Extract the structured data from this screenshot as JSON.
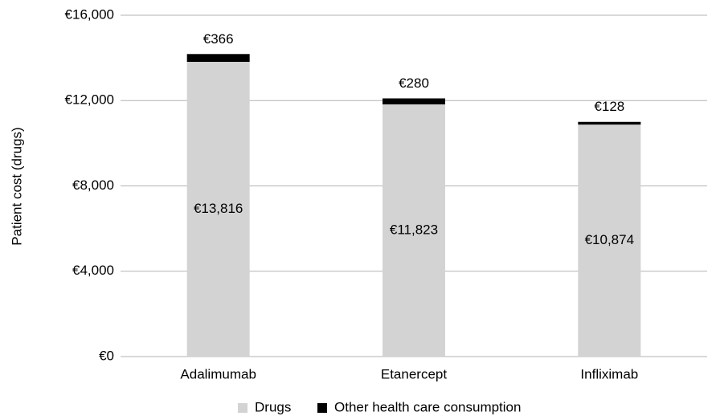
{
  "chart_data": {
    "type": "stacked_bar",
    "y_label": "Patient cost (drugs)",
    "categories": [
      "Adalimumab",
      "Etanercept",
      "Infliximab"
    ],
    "series": [
      {
        "name": "Drugs",
        "color": "#d3d3d3",
        "values": [
          13816,
          11823,
          10874
        ],
        "value_labels": [
          "€13,816",
          "€11,823",
          "€10,874"
        ]
      },
      {
        "name": "Other health care consumption",
        "color": "#000000",
        "values": [
          366,
          280,
          128
        ],
        "value_labels": [
          "€366",
          "€280",
          "€128"
        ]
      }
    ],
    "ylim": [
      0,
      16000
    ],
    "yticks": [
      {
        "value": 0,
        "label": "€0"
      },
      {
        "value": 4000,
        "label": "€4,000"
      },
      {
        "value": 8000,
        "label": "€8,000"
      },
      {
        "value": 12000,
        "label": "€12,000"
      },
      {
        "value": 16000,
        "label": "€16,000"
      }
    ],
    "grid": true,
    "legend": "bottom"
  }
}
